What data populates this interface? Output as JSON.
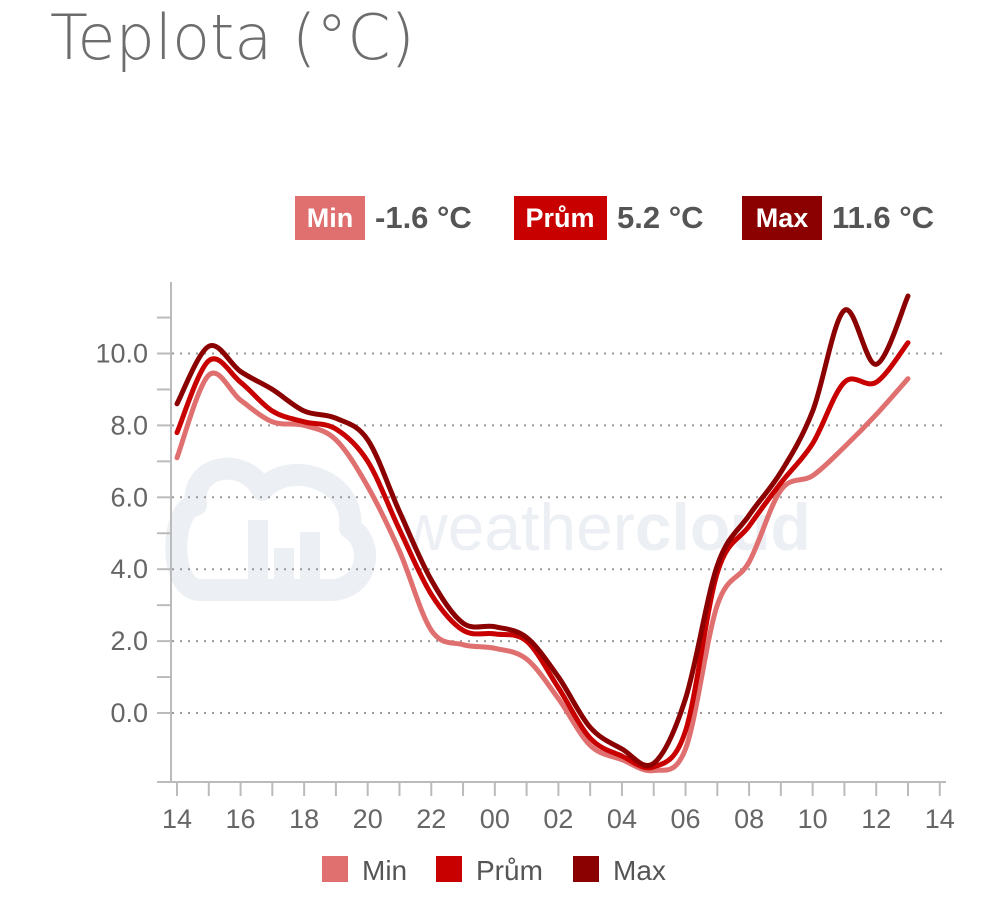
{
  "page_title": "Teplota (°C)",
  "watermark": {
    "text_light": "weather",
    "text_bold": "cloud"
  },
  "summary": [
    {
      "label": "Min",
      "value": "-1.6 °C",
      "color": "#e07070"
    },
    {
      "label": "Prům",
      "value": "5.2 °C",
      "color": "#c80000"
    },
    {
      "label": "Max",
      "value": "11.6 °C",
      "color": "#8b0000"
    }
  ],
  "chart_data": {
    "type": "line",
    "title": "Teplota (°C)",
    "xlabel": "",
    "ylabel": "",
    "x_ticks": [
      "14",
      "16",
      "18",
      "20",
      "22",
      "00",
      "02",
      "04",
      "06",
      "08",
      "10",
      "12",
      "14"
    ],
    "x": [
      14,
      15,
      16,
      17,
      18,
      19,
      20,
      21,
      22,
      23,
      24,
      25,
      26,
      27,
      28,
      29,
      30,
      31,
      32,
      33,
      34,
      35,
      36,
      37
    ],
    "x_note_hidden": "",
    "ylim": [
      -1.9,
      12.0
    ],
    "y_ticks": [
      "0.0",
      "2.0",
      "4.0",
      "6.0",
      "8.0",
      "10.0"
    ],
    "y_tick_values": [
      0,
      2,
      4,
      6,
      8,
      10
    ],
    "grid": "horizontal-dotted",
    "legend": "bottom",
    "series": [
      {
        "name": "Min",
        "color": "#e07070",
        "values": [
          7.1,
          9.4,
          8.7,
          8.1,
          8.0,
          7.6,
          6.3,
          4.5,
          2.3,
          1.9,
          1.8,
          1.5,
          0.4,
          -0.9,
          -1.3,
          -1.6,
          -1.0,
          3.0,
          4.2,
          6.2,
          6.6,
          7.4,
          8.3,
          9.3
        ]
      },
      {
        "name": "Prům",
        "color": "#c80000",
        "values": [
          7.8,
          9.8,
          9.2,
          8.4,
          8.1,
          7.9,
          7.0,
          5.1,
          3.3,
          2.3,
          2.2,
          2.0,
          0.7,
          -0.7,
          -1.2,
          -1.5,
          -0.5,
          3.9,
          5.2,
          6.4,
          7.5,
          9.2,
          9.2,
          10.3
        ]
      },
      {
        "name": "Max",
        "color": "#8b0000",
        "values": [
          8.6,
          10.2,
          9.5,
          9.0,
          8.4,
          8.2,
          7.6,
          5.6,
          3.7,
          2.5,
          2.4,
          2.1,
          1.0,
          -0.4,
          -1.0,
          -1.4,
          0.4,
          4.1,
          5.5,
          6.7,
          8.4,
          11.2,
          9.7,
          11.6
        ]
      }
    ]
  }
}
